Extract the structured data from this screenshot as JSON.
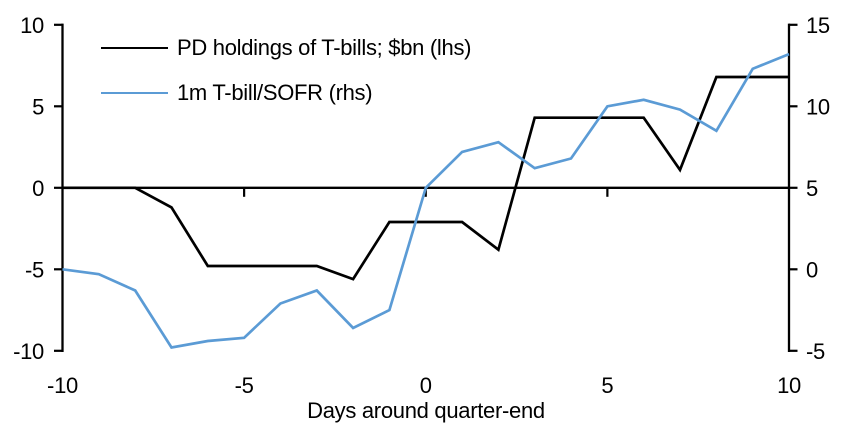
{
  "colors": {
    "background": "#ffffff",
    "axis": "#000000",
    "pd_line": "#000000",
    "sofr_line": "#5B9BD5"
  },
  "chart_data": {
    "type": "line",
    "xlabel": "Days around quarter-end",
    "x": [
      -10,
      -9,
      -8,
      -7,
      -6,
      -5,
      -4,
      -3,
      -2,
      -1,
      0,
      1,
      2,
      3,
      4,
      5,
      6,
      7,
      8,
      9,
      10
    ],
    "x_ticks": [
      -10,
      -5,
      0,
      5,
      10
    ],
    "x_axis_tick_marks": [
      -5,
      0,
      5
    ],
    "left_axis": {
      "ticks": [
        10,
        5,
        0,
        -5,
        -10
      ],
      "range": [
        -10,
        10
      ]
    },
    "right_axis": {
      "ticks": [
        15,
        10,
        5,
        0,
        -5
      ],
      "range": [
        -5,
        15
      ]
    },
    "grid": false,
    "legend_position": "top-left",
    "series": [
      {
        "name": "PD holdings of T-bills; $bn (lhs)",
        "axis": "left",
        "color": "#000000",
        "values": [
          0,
          0,
          0,
          -1.2,
          -4.8,
          -4.8,
          -4.8,
          -4.8,
          -5.6,
          -2.1,
          -2.1,
          -2.1,
          -3.8,
          4.3,
          4.3,
          4.3,
          4.3,
          1.1,
          6.8,
          6.8,
          6.8
        ]
      },
      {
        "name": "1m T-bill/SOFR (rhs)",
        "axis": "right",
        "color": "#5B9BD5",
        "values": [
          0,
          -0.3,
          -1.3,
          -4.8,
          -4.4,
          -4.2,
          -2.1,
          -1.3,
          -3.6,
          -2.5,
          5.0,
          7.2,
          7.8,
          6.2,
          6.8,
          10.0,
          10.4,
          9.8,
          8.5,
          12.3,
          13.2
        ]
      }
    ]
  }
}
